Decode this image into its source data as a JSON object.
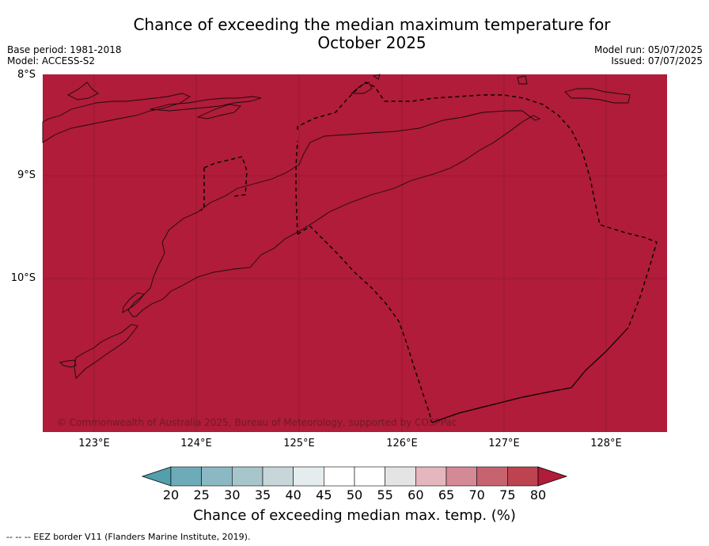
{
  "title": "Chance of exceeding the median maximum temperature for October 2025",
  "meta_left": {
    "base_period": "Base period: 1981-2018",
    "model": "Model: ACCESS-S2"
  },
  "meta_right": {
    "model_run": "Model run: 05/07/2025",
    "issued": "Issued: 07/07/2025"
  },
  "map": {
    "lat_labels": [
      "8°S",
      "9°S",
      "10°S"
    ],
    "lon_labels": [
      "123°E",
      "124°E",
      "125°E",
      "126°E",
      "127°E",
      "128°E"
    ],
    "fill_color": "#b01c39",
    "fill_category": "80",
    "copyright": "© Commonwealth of Australia 2025, Bureau of Meteorology, supported by COSPPac"
  },
  "colorbar": {
    "ticks": [
      "20",
      "25",
      "30",
      "35",
      "40",
      "45",
      "50",
      "55",
      "60",
      "65",
      "70",
      "75",
      "80"
    ],
    "colors": [
      "#529fae",
      "#6eabb9",
      "#8bb9c3",
      "#a6c6cc",
      "#c6d6d9",
      "#e5eced",
      "#ffffff",
      "#ffffff",
      "#e4e4e4",
      "#e4b6be",
      "#d48a96",
      "#c7636f",
      "#bd4350",
      "#b01c39"
    ],
    "label": "Chance of exceeding median max. temp. (%)"
  },
  "footnote": "-- -- -- EEZ border V11 (Flanders Marine Institute, 2019)."
}
